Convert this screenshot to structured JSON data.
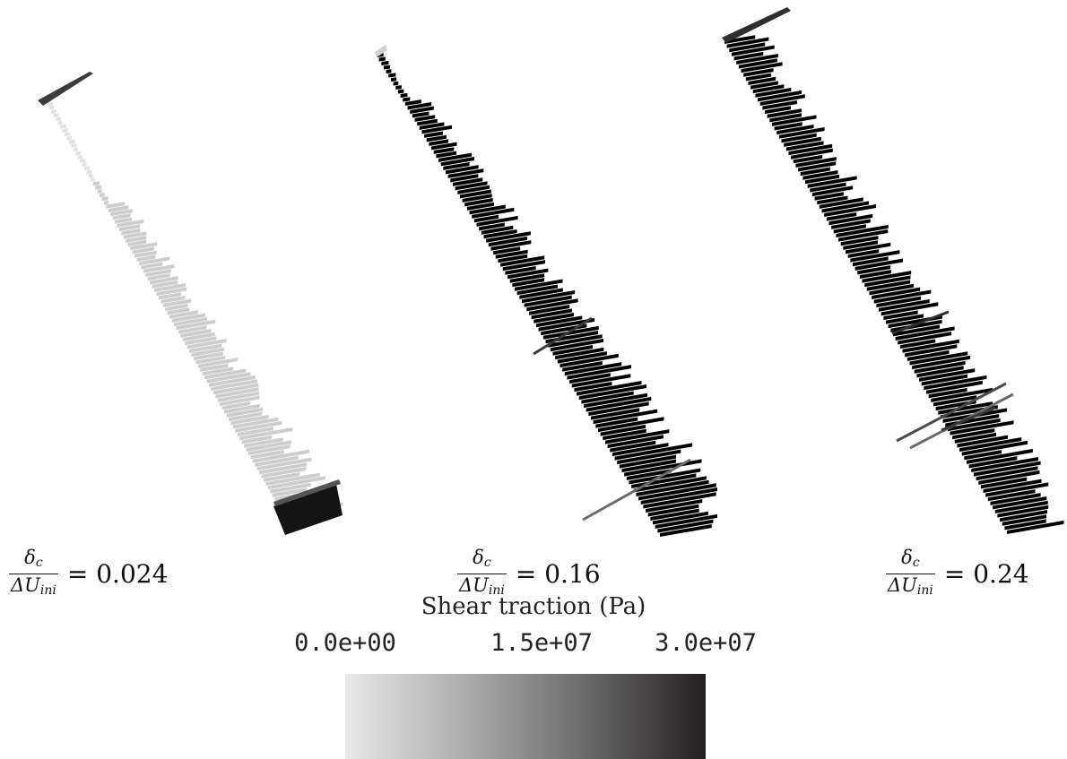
{
  "panels": [
    {
      "ratio_value": "0.024",
      "color_stops": [
        "#cfcfcf",
        "#3a3a3a",
        "#141414"
      ]
    },
    {
      "ratio_value": "0.16",
      "color_stops": [
        "#d2d2d2",
        "#8e8e8e",
        "#4a4a4a"
      ]
    },
    {
      "ratio_value": "0.24",
      "color_stops": [
        "#9b9b9b",
        "#7c7c7c",
        "#2e2e2e"
      ]
    }
  ],
  "caption": {
    "numerator_symbol": "δ",
    "numerator_sub": "c",
    "denominator_symbol": "ΔU",
    "denominator_sub": "ini",
    "equals": "="
  },
  "colorbar": {
    "title": "Shear traction (Pa)",
    "ticks": [
      "0.0e+00",
      "1.5e+07",
      "3.0e+07"
    ],
    "min": 0,
    "max": 30000000,
    "colors": [
      "#e8e8e8",
      "#a9a9a9",
      "#6e6e6e",
      "#231f20"
    ]
  }
}
